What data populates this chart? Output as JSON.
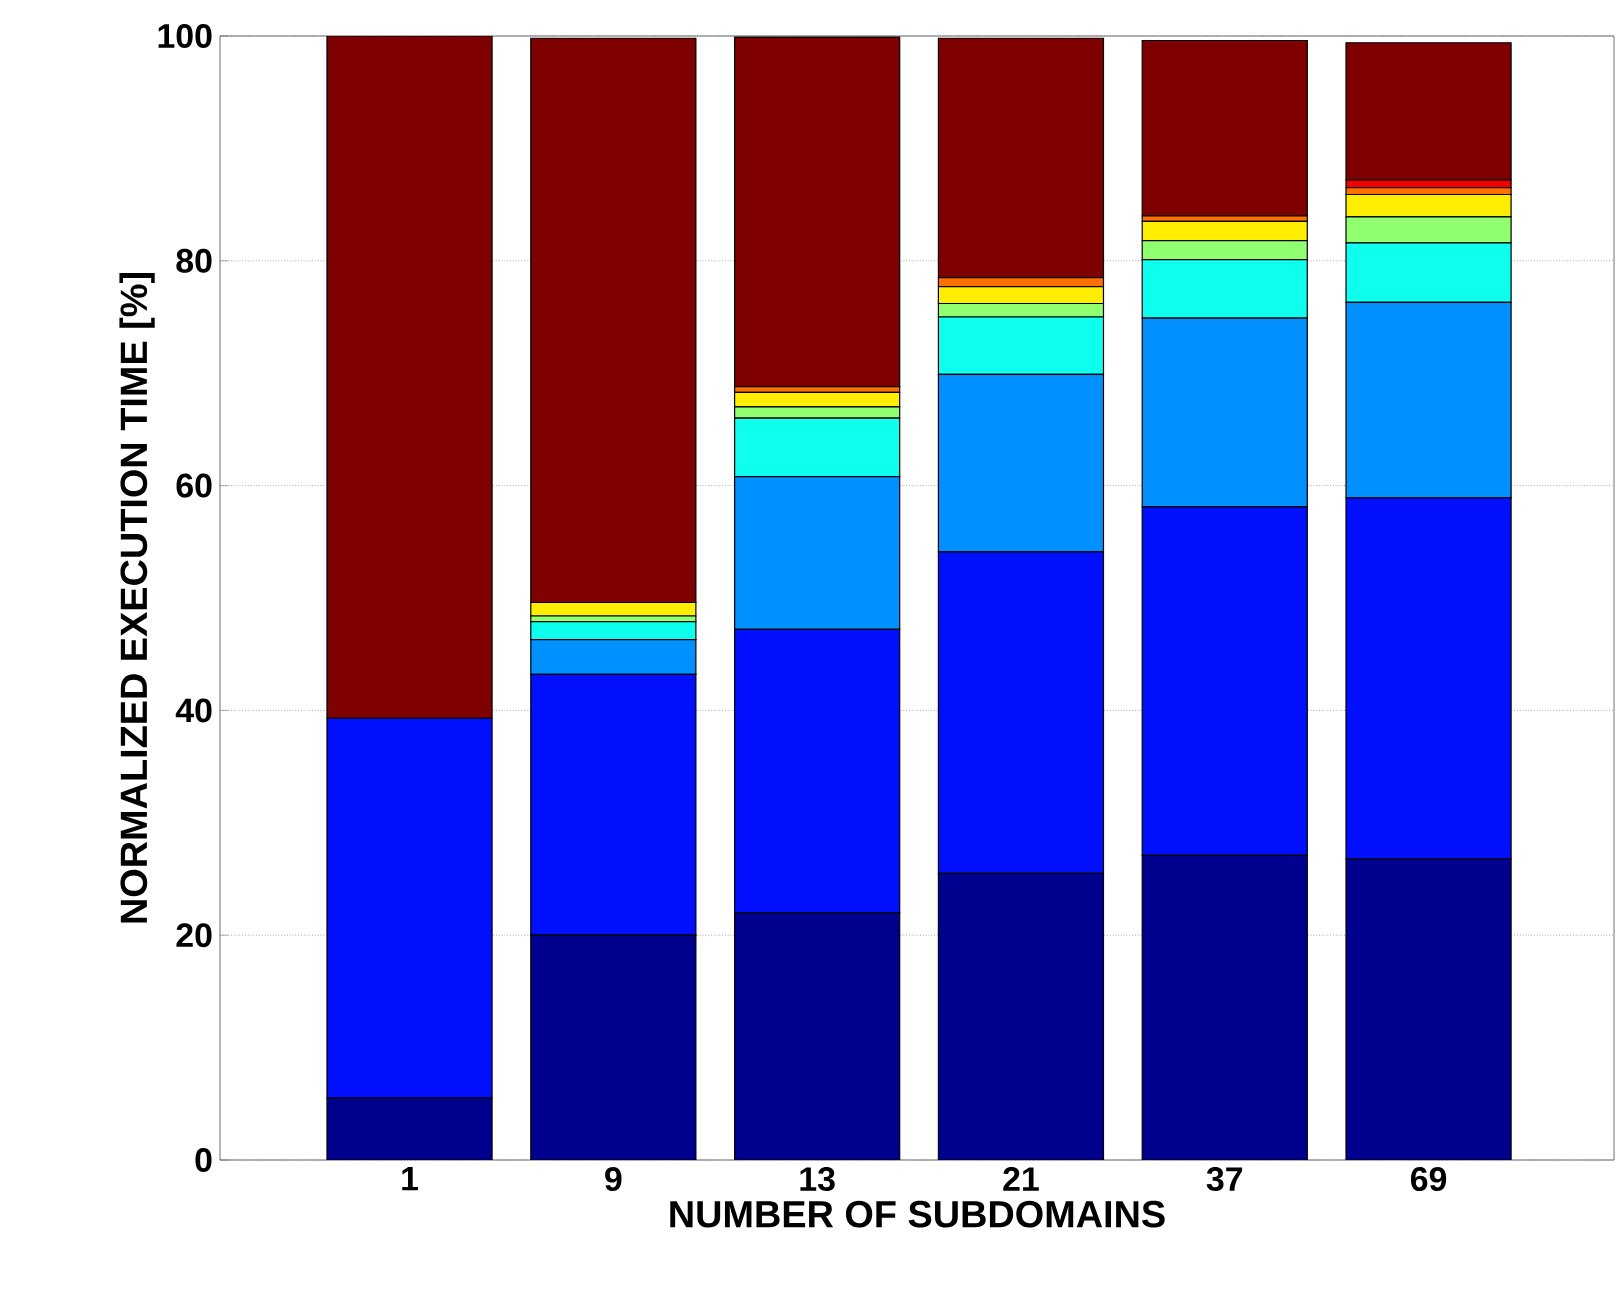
{
  "chart_data": {
    "type": "bar",
    "stacked": true,
    "xlabel": "NUMBER OF SUBDOMAINS",
    "ylabel": "NORMALIZED EXECUTION TIME [%]",
    "categories": [
      "1",
      "9",
      "13",
      "21",
      "37",
      "69"
    ],
    "series": [
      {
        "color": "#00008f",
        "values": [
          5.5,
          20.0,
          22.0,
          25.5,
          27.1,
          26.8
        ]
      },
      {
        "color": "#0010ff",
        "values": [
          33.8,
          23.2,
          25.2,
          28.6,
          31.0,
          32.1
        ]
      },
      {
        "color": "#0090ff",
        "values": [
          null,
          3.1,
          13.6,
          15.8,
          16.8,
          17.4
        ]
      },
      {
        "color": "#0fffee",
        "values": [
          null,
          1.6,
          5.2,
          5.1,
          5.2,
          5.3
        ]
      },
      {
        "color": "#90ff70",
        "values": [
          null,
          0.5,
          1.0,
          1.2,
          1.7,
          2.3
        ]
      },
      {
        "color": "#ffee00",
        "values": [
          null,
          1.2,
          1.3,
          1.5,
          1.7,
          2.0
        ]
      },
      {
        "color": "#ff7000",
        "values": [
          null,
          null,
          0.5,
          0.8,
          0.5,
          0.6
        ]
      },
      {
        "color": "#ee0000",
        "values": [
          null,
          null,
          null,
          null,
          null,
          0.7
        ]
      },
      {
        "color": "#7f0000",
        "values": [
          60.7,
          50.2,
          31.1,
          21.3,
          15.6,
          12.2
        ]
      }
    ],
    "ylim": [
      0,
      100
    ],
    "yticks": [
      0,
      20,
      40,
      60,
      80,
      100
    ],
    "grid": "y"
  }
}
